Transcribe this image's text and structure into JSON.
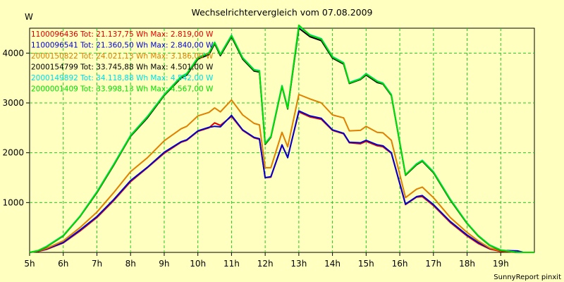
{
  "chart_data": {
    "type": "line",
    "title": "Wechselrichtervergleich vom 07.08.2009",
    "ylabel": "W",
    "xlabel": "",
    "credit": "SunnyReport pinxit",
    "x_ticks": [
      {
        "value": 5,
        "label": "5h"
      },
      {
        "value": 6,
        "label": "6h"
      },
      {
        "value": 7,
        "label": "7h"
      },
      {
        "value": 8,
        "label": "8h"
      },
      {
        "value": 9,
        "label": "9h"
      },
      {
        "value": 10,
        "label": "10h"
      },
      {
        "value": 11,
        "label": "11h"
      },
      {
        "value": 12,
        "label": "12h"
      },
      {
        "value": 13,
        "label": "13h"
      },
      {
        "value": 14,
        "label": "14h"
      },
      {
        "value": 15,
        "label": "15h"
      },
      {
        "value": 16,
        "label": "16h"
      },
      {
        "value": 17,
        "label": "17h"
      },
      {
        "value": 18,
        "label": "18h"
      },
      {
        "value": 19,
        "label": "19h"
      }
    ],
    "y_ticks": [
      {
        "value": 1000,
        "label": "1000"
      },
      {
        "value": 2000,
        "label": "2000"
      },
      {
        "value": 3000,
        "label": "3000"
      },
      {
        "value": 4000,
        "label": "4000"
      }
    ],
    "xlim": [
      5,
      20
    ],
    "ylim": [
      0,
      4500
    ],
    "grid": true,
    "legend_position": "top-left",
    "series": [
      {
        "name": "1100096436 Tot: 21.137,75 Wh Max: 2.819,00 W",
        "color": "#E00000",
        "points": [
          [
            5,
            0
          ],
          [
            5.25,
            20
          ],
          [
            5.5,
            60
          ],
          [
            6,
            190
          ],
          [
            6.5,
            430
          ],
          [
            7,
            700
          ],
          [
            7.5,
            1040
          ],
          [
            8,
            1420
          ],
          [
            8.5,
            1700
          ],
          [
            9,
            1990
          ],
          [
            9.5,
            2210
          ],
          [
            9.67,
            2250
          ],
          [
            10,
            2430
          ],
          [
            10.33,
            2500
          ],
          [
            10.5,
            2600
          ],
          [
            10.67,
            2550
          ],
          [
            11,
            2730
          ],
          [
            11.33,
            2450
          ],
          [
            11.67,
            2300
          ],
          [
            11.83,
            2270
          ],
          [
            12,
            1500
          ],
          [
            12.17,
            1510
          ],
          [
            12.5,
            2150
          ],
          [
            12.67,
            1910
          ],
          [
            13,
            2820
          ],
          [
            13.33,
            2720
          ],
          [
            13.67,
            2670
          ],
          [
            14,
            2450
          ],
          [
            14.33,
            2380
          ],
          [
            14.5,
            2200
          ],
          [
            14.83,
            2180
          ],
          [
            15,
            2230
          ],
          [
            15.33,
            2140
          ],
          [
            15.5,
            2120
          ],
          [
            15.75,
            1990
          ],
          [
            16.17,
            960
          ],
          [
            16.5,
            1110
          ],
          [
            16.67,
            1120
          ],
          [
            17,
            940
          ],
          [
            17.5,
            600
          ],
          [
            18,
            330
          ],
          [
            18.33,
            180
          ],
          [
            18.67,
            70
          ],
          [
            19,
            20
          ],
          [
            19.5,
            0
          ],
          [
            20,
            0
          ]
        ]
      },
      {
        "name": "1100096541 Tot: 21.360,50 Wh Max: 2.840,00 W",
        "color": "#0000D0",
        "points": [
          [
            5,
            0
          ],
          [
            5.25,
            25
          ],
          [
            5.5,
            70
          ],
          [
            6,
            200
          ],
          [
            6.5,
            450
          ],
          [
            7,
            720
          ],
          [
            7.5,
            1060
          ],
          [
            8,
            1440
          ],
          [
            8.5,
            1710
          ],
          [
            9,
            2010
          ],
          [
            9.5,
            2220
          ],
          [
            9.67,
            2260
          ],
          [
            10,
            2440
          ],
          [
            10.33,
            2510
          ],
          [
            10.5,
            2530
          ],
          [
            10.67,
            2520
          ],
          [
            11,
            2750
          ],
          [
            11.33,
            2460
          ],
          [
            11.67,
            2310
          ],
          [
            11.83,
            2280
          ],
          [
            12,
            1500
          ],
          [
            12.17,
            1520
          ],
          [
            12.5,
            2160
          ],
          [
            12.67,
            1900
          ],
          [
            13,
            2840
          ],
          [
            13.33,
            2740
          ],
          [
            13.67,
            2690
          ],
          [
            14,
            2460
          ],
          [
            14.33,
            2390
          ],
          [
            14.5,
            2210
          ],
          [
            14.83,
            2200
          ],
          [
            15,
            2250
          ],
          [
            15.33,
            2160
          ],
          [
            15.5,
            2140
          ],
          [
            15.75,
            2000
          ],
          [
            16.17,
            970
          ],
          [
            16.5,
            1120
          ],
          [
            16.67,
            1140
          ],
          [
            17,
            960
          ],
          [
            17.5,
            620
          ],
          [
            18,
            350
          ],
          [
            18.33,
            200
          ],
          [
            18.67,
            80
          ],
          [
            19,
            40
          ],
          [
            19.5,
            30
          ],
          [
            19.67,
            0
          ],
          [
            20,
            0
          ]
        ]
      },
      {
        "name": "2000150822 Tot: 24.021,13 Wh Max: 3.186,00 W",
        "color": "#E08000",
        "points": [
          [
            5,
            0
          ],
          [
            5.25,
            25
          ],
          [
            5.5,
            80
          ],
          [
            6,
            230
          ],
          [
            6.5,
            500
          ],
          [
            7,
            810
          ],
          [
            7.5,
            1200
          ],
          [
            8,
            1620
          ],
          [
            8.5,
            1900
          ],
          [
            9,
            2240
          ],
          [
            9.5,
            2480
          ],
          [
            9.67,
            2530
          ],
          [
            10,
            2740
          ],
          [
            10.33,
            2810
          ],
          [
            10.5,
            2900
          ],
          [
            10.67,
            2820
          ],
          [
            11,
            3060
          ],
          [
            11.33,
            2760
          ],
          [
            11.67,
            2590
          ],
          [
            11.83,
            2560
          ],
          [
            12,
            1700
          ],
          [
            12.17,
            1700
          ],
          [
            12.5,
            2410
          ],
          [
            12.67,
            2120
          ],
          [
            13,
            3170
          ],
          [
            13.33,
            3080
          ],
          [
            13.67,
            3000
          ],
          [
            14,
            2760
          ],
          [
            14.33,
            2700
          ],
          [
            14.5,
            2440
          ],
          [
            14.83,
            2450
          ],
          [
            15,
            2530
          ],
          [
            15.33,
            2410
          ],
          [
            15.5,
            2400
          ],
          [
            15.75,
            2250
          ],
          [
            16.17,
            1100
          ],
          [
            16.5,
            1270
          ],
          [
            16.67,
            1310
          ],
          [
            17,
            1100
          ],
          [
            17.5,
            700
          ],
          [
            18,
            400
          ],
          [
            18.33,
            230
          ],
          [
            18.67,
            90
          ],
          [
            19,
            30
          ],
          [
            19.5,
            0
          ],
          [
            20,
            0
          ]
        ]
      },
      {
        "name": "2000154799 Tot: 33.745,88 Wh Max: 4.501,00 W",
        "color": "#000000",
        "points": [
          [
            5,
            0
          ],
          [
            5.25,
            30
          ],
          [
            5.5,
            110
          ],
          [
            6,
            330
          ],
          [
            6.5,
            720
          ],
          [
            7,
            1200
          ],
          [
            7.5,
            1750
          ],
          [
            8,
            2330
          ],
          [
            8.5,
            2700
          ],
          [
            9,
            3150
          ],
          [
            9.5,
            3500
          ],
          [
            9.67,
            3560
          ],
          [
            10,
            3880
          ],
          [
            10.33,
            3970
          ],
          [
            10.5,
            4190
          ],
          [
            10.67,
            3950
          ],
          [
            11,
            4330
          ],
          [
            11.33,
            3880
          ],
          [
            11.67,
            3640
          ],
          [
            11.83,
            3620
          ],
          [
            12,
            2170
          ],
          [
            12.17,
            2310
          ],
          [
            12.5,
            3330
          ],
          [
            12.67,
            2880
          ],
          [
            13,
            4500
          ],
          [
            13.33,
            4330
          ],
          [
            13.67,
            4250
          ],
          [
            14,
            3900
          ],
          [
            14.33,
            3780
          ],
          [
            14.5,
            3390
          ],
          [
            14.83,
            3470
          ],
          [
            15,
            3560
          ],
          [
            15.33,
            3410
          ],
          [
            15.5,
            3380
          ],
          [
            15.75,
            3150
          ],
          [
            16.17,
            1550
          ],
          [
            16.5,
            1760
          ],
          [
            16.67,
            1830
          ],
          [
            17,
            1600
          ],
          [
            17.5,
            1050
          ],
          [
            18,
            580
          ],
          [
            18.33,
            330
          ],
          [
            18.67,
            140
          ],
          [
            19,
            40
          ],
          [
            19.5,
            0
          ],
          [
            20,
            0
          ]
        ]
      },
      {
        "name": "2000149892 Tot: 34.118,88 Wh Max: 4.542,00 W",
        "color": "#00E0E0",
        "points": [
          [
            5,
            0
          ],
          [
            5.25,
            35
          ],
          [
            5.5,
            120
          ],
          [
            6,
            340
          ],
          [
            6.5,
            730
          ],
          [
            7,
            1220
          ],
          [
            7.5,
            1770
          ],
          [
            8,
            2350
          ],
          [
            8.5,
            2730
          ],
          [
            9,
            3170
          ],
          [
            9.5,
            3530
          ],
          [
            9.67,
            3590
          ],
          [
            10,
            3910
          ],
          [
            10.33,
            4010
          ],
          [
            10.5,
            4220
          ],
          [
            10.67,
            3980
          ],
          [
            11,
            4360
          ],
          [
            11.33,
            3910
          ],
          [
            11.67,
            3670
          ],
          [
            11.83,
            3650
          ],
          [
            12,
            2190
          ],
          [
            12.17,
            2330
          ],
          [
            12.5,
            3350
          ],
          [
            12.67,
            2900
          ],
          [
            13,
            4540
          ],
          [
            13.33,
            4370
          ],
          [
            13.67,
            4290
          ],
          [
            14,
            3930
          ],
          [
            14.33,
            3810
          ],
          [
            14.5,
            3410
          ],
          [
            14.83,
            3490
          ],
          [
            15,
            3590
          ],
          [
            15.33,
            3440
          ],
          [
            15.5,
            3400
          ],
          [
            15.75,
            3170
          ],
          [
            16.17,
            1560
          ],
          [
            16.5,
            1780
          ],
          [
            16.67,
            1850
          ],
          [
            17,
            1620
          ],
          [
            17.5,
            1070
          ],
          [
            18,
            590
          ],
          [
            18.33,
            340
          ],
          [
            18.67,
            150
          ],
          [
            19,
            50
          ],
          [
            19.5,
            0
          ],
          [
            20,
            0
          ]
        ]
      },
      {
        "name": "2000001409 Tot: 33.998,13 Wh Max: 4.567,00 W",
        "color": "#00DD00",
        "points": [
          [
            5,
            0
          ],
          [
            5.25,
            35
          ],
          [
            5.5,
            115
          ],
          [
            6,
            335
          ],
          [
            6.5,
            725
          ],
          [
            7,
            1210
          ],
          [
            7.5,
            1760
          ],
          [
            8,
            2340
          ],
          [
            8.5,
            2720
          ],
          [
            9,
            3160
          ],
          [
            9.5,
            3520
          ],
          [
            9.67,
            3580
          ],
          [
            10,
            3900
          ],
          [
            10.33,
            4000
          ],
          [
            10.5,
            4210
          ],
          [
            10.67,
            3970
          ],
          [
            11,
            4350
          ],
          [
            11.33,
            3900
          ],
          [
            11.67,
            3660
          ],
          [
            11.83,
            3640
          ],
          [
            12,
            2180
          ],
          [
            12.17,
            2320
          ],
          [
            12.5,
            3340
          ],
          [
            12.67,
            2890
          ],
          [
            13,
            4560
          ],
          [
            13.33,
            4360
          ],
          [
            13.67,
            4280
          ],
          [
            14,
            3920
          ],
          [
            14.33,
            3800
          ],
          [
            14.5,
            3400
          ],
          [
            14.83,
            3480
          ],
          [
            15,
            3580
          ],
          [
            15.33,
            3430
          ],
          [
            15.5,
            3390
          ],
          [
            15.75,
            3160
          ],
          [
            16.17,
            1560
          ],
          [
            16.5,
            1770
          ],
          [
            16.67,
            1840
          ],
          [
            17,
            1610
          ],
          [
            17.5,
            1060
          ],
          [
            18,
            585
          ],
          [
            18.33,
            335
          ],
          [
            18.67,
            145
          ],
          [
            19,
            45
          ],
          [
            19.5,
            0
          ],
          [
            20,
            0
          ]
        ]
      }
    ]
  }
}
